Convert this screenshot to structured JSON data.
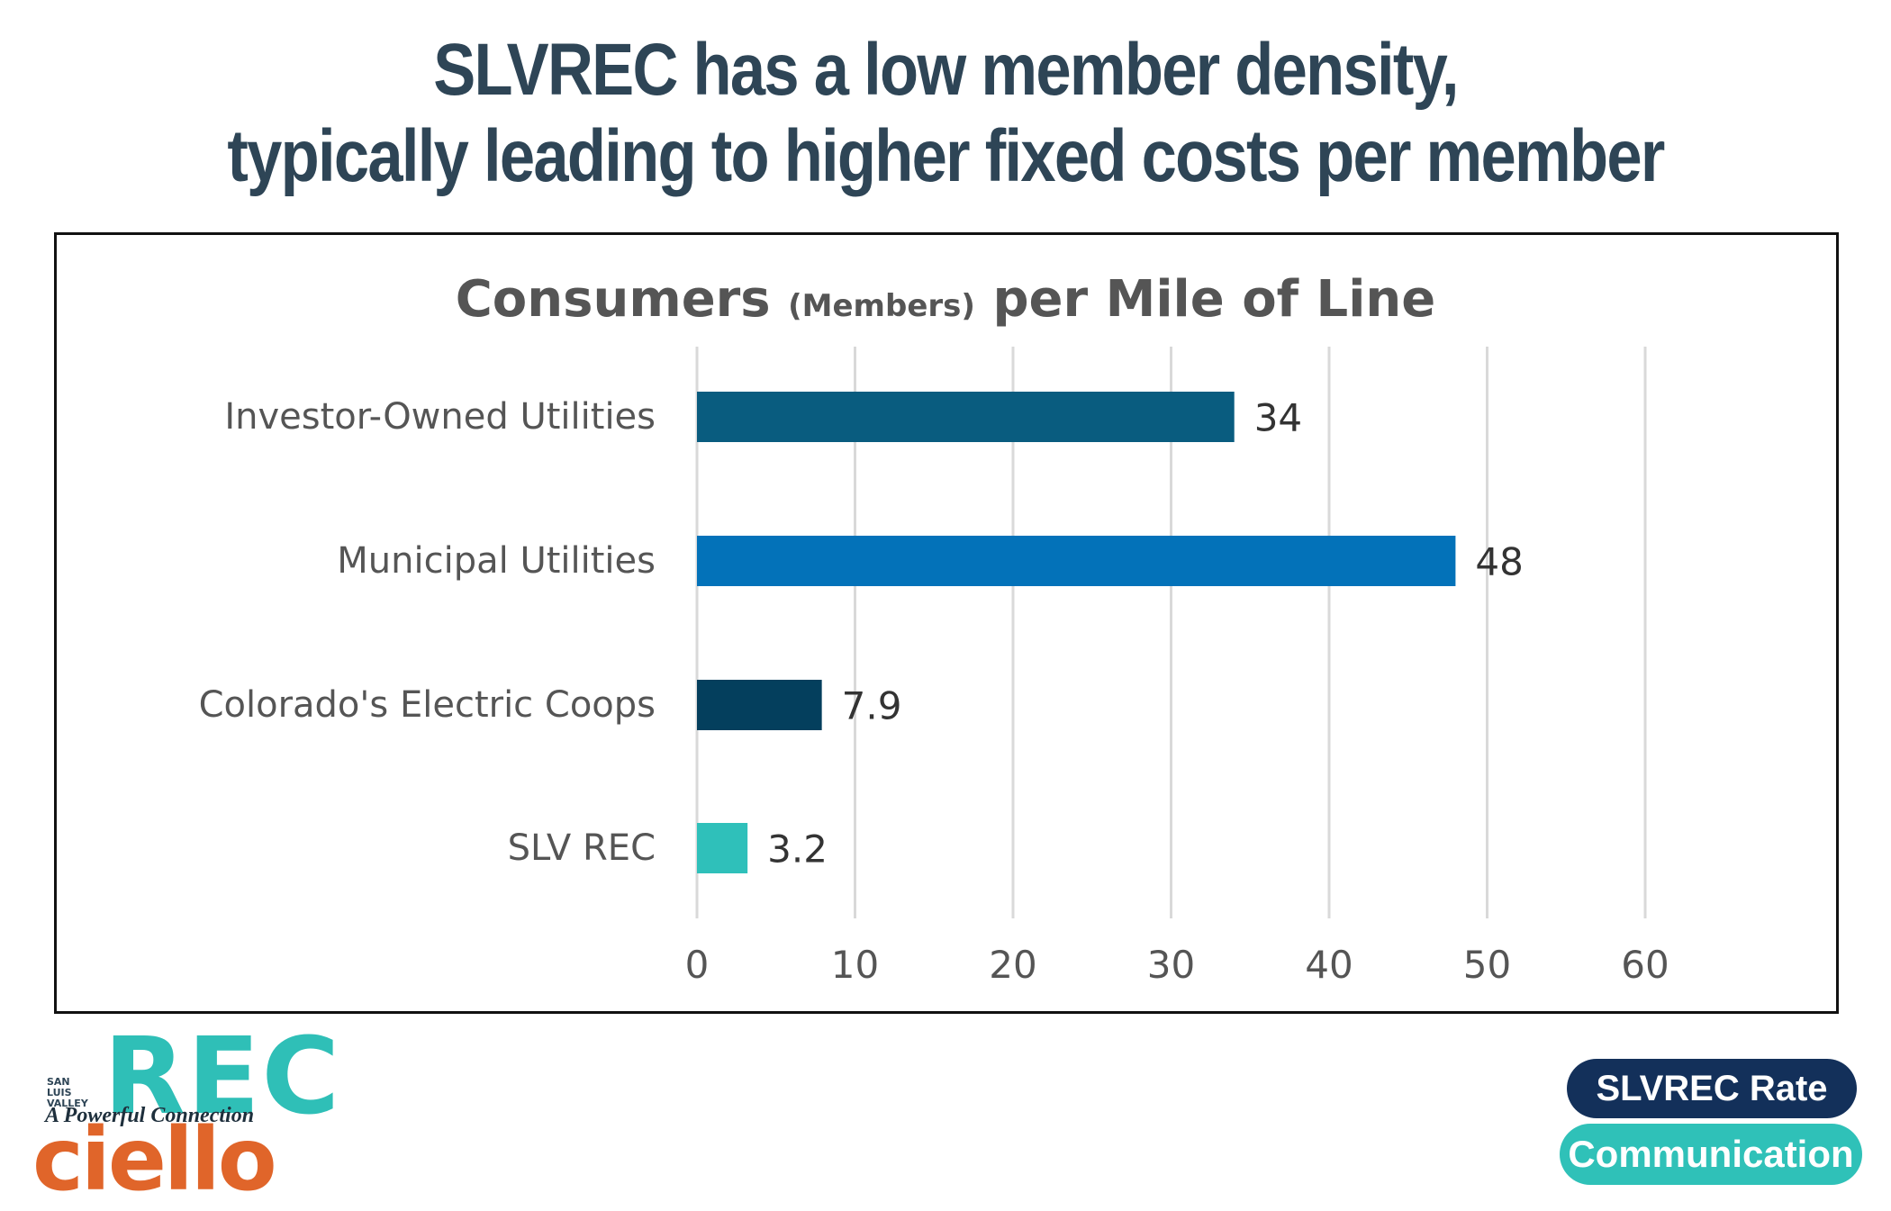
{
  "headline": {
    "line1": "SLVREC has a low member density,",
    "line2": "typically leading to higher fixed costs per member"
  },
  "chart_data": {
    "type": "bar",
    "orientation": "horizontal",
    "title": "Consumers",
    "title_small": "(Members)",
    "title_rest": "per Mile of Line",
    "categories": [
      "Investor-Owned Utilities",
      "Municipal Utilities",
      "Colorado's Electric Coops",
      "SLV REC"
    ],
    "values": [
      34,
      48,
      7.9,
      3.2
    ],
    "value_labels": [
      "34",
      "48",
      "7.9",
      "3.2"
    ],
    "colors": [
      "#095c7f",
      "#0372b9",
      "#043f5d",
      "#2fc0ba"
    ],
    "xlim": [
      0,
      60
    ],
    "xticks": [
      0,
      10,
      20,
      30,
      40,
      50,
      60
    ],
    "xtick_labels": [
      "0",
      "10",
      "20",
      "30",
      "40",
      "50",
      "60"
    ],
    "grid": true,
    "legend": false
  },
  "branding": {
    "rec_logo_text": "REC",
    "rec_logo_side": "SAN LUIS VALLEY",
    "tagline": "A Powerful Connection",
    "ciello_logo_text": "ciello",
    "badge_rate": "SLVREC Rate",
    "badge_comm": "Communication",
    "colors": {
      "teal": "#2fbfb7",
      "navy": "#13305a",
      "orange": "#e0652a"
    }
  }
}
